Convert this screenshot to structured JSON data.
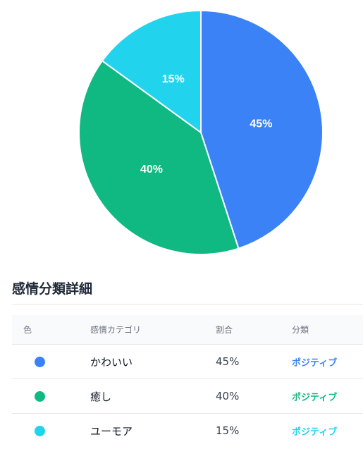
{
  "chart_data": {
    "type": "pie",
    "slices": [
      {
        "label": "かわいい",
        "value": 45,
        "display": "45%",
        "color": "#3b82f6"
      },
      {
        "label": "癒し",
        "value": 40,
        "display": "40%",
        "color": "#10b981"
      },
      {
        "label": "ユーモア",
        "value": 15,
        "display": "15%",
        "color": "#22d3ee"
      }
    ],
    "start_angle": "12 o'clock",
    "direction": "clockwise"
  },
  "section": {
    "title": "感情分類詳細"
  },
  "table": {
    "headers": {
      "color": "色",
      "category": "感情カテゴリ",
      "ratio": "割合",
      "classification": "分類"
    },
    "rows": [
      {
        "category": "かわいい",
        "ratio": "45%",
        "classification": "ポジティブ",
        "color": "#3b82f6"
      },
      {
        "category": "癒し",
        "ratio": "40%",
        "classification": "ポジティブ",
        "color": "#10b981"
      },
      {
        "category": "ユーモア",
        "ratio": "15%",
        "classification": "ポジティブ",
        "color": "#22d3ee"
      }
    ]
  }
}
